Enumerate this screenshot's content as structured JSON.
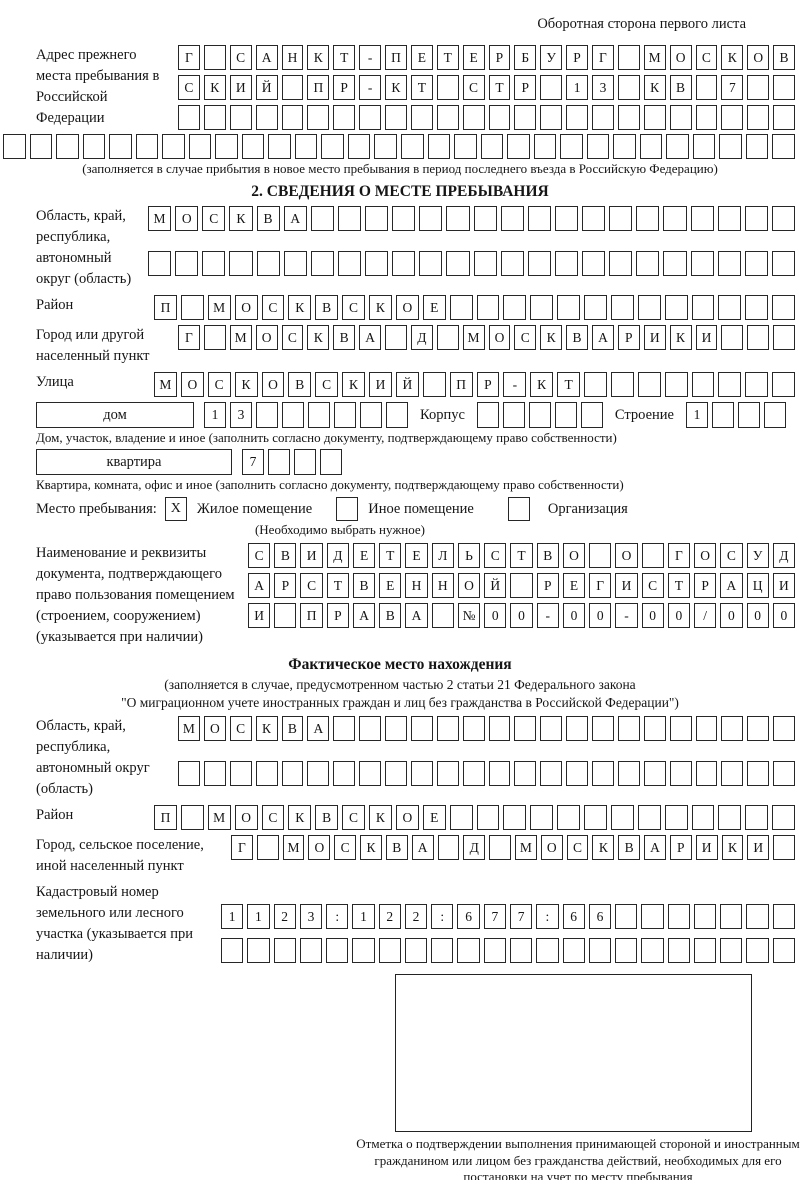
{
  "colors": {
    "ink": "#151515",
    "box_border": "#272727",
    "background": "#ffffff"
  },
  "header": {
    "note": "Оборотная сторона первого листа"
  },
  "prev_address": {
    "label": "Адрес прежнего места пребывания в Российской Федерации",
    "rows": [
      [
        "Г",
        "",
        "С",
        "А",
        "Н",
        "К",
        "Т",
        "-",
        "П",
        "Е",
        "Т",
        "Е",
        "Р",
        "Б",
        "У",
        "Р",
        "Г",
        "",
        "М",
        "О",
        "С",
        "К",
        "О",
        "В"
      ],
      [
        "С",
        "К",
        "И",
        "Й",
        "",
        "П",
        "Р",
        "-",
        "К",
        "Т",
        "",
        "С",
        "Т",
        "Р",
        "",
        "1",
        "3",
        "",
        "К",
        "В",
        "",
        "7",
        "",
        ""
      ],
      [
        "",
        "",
        "",
        "",
        "",
        "",
        "",
        "",
        "",
        "",
        "",
        "",
        "",
        "",
        "",
        "",
        "",
        "",
        "",
        "",
        "",
        "",
        "",
        ""
      ]
    ],
    "overflow_row": [
      "",
      "",
      "",
      "",
      "",
      "",
      "",
      "",
      "",
      "",
      "",
      "",
      "",
      "",
      "",
      "",
      "",
      "",
      "",
      "",
      "",
      "",
      "",
      "",
      "",
      "",
      "",
      "",
      "",
      ""
    ],
    "caption": "(заполняется в случае прибытия в новое место пребывания в период последнего въезда в Российскую Федерацию)"
  },
  "section2": {
    "title": "2. СВЕДЕНИЯ О МЕСТЕ ПРЕБЫВАНИЯ",
    "region": {
      "label": "Область, край, республика, автономный округ (область)",
      "rows": [
        [
          "М",
          "О",
          "С",
          "К",
          "В",
          "А",
          "",
          "",
          "",
          "",
          "",
          "",
          "",
          "",
          "",
          "",
          "",
          "",
          "",
          "",
          "",
          "",
          "",
          ""
        ],
        [
          "",
          "",
          "",
          "",
          "",
          "",
          "",
          "",
          "",
          "",
          "",
          "",
          "",
          "",
          "",
          "",
          "",
          "",
          "",
          "",
          "",
          "",
          "",
          ""
        ]
      ]
    },
    "district": {
      "label": "Район",
      "row": [
        "П",
        "",
        "М",
        "О",
        "С",
        "К",
        "В",
        "С",
        "К",
        "О",
        "Е",
        "",
        "",
        "",
        "",
        "",
        "",
        "",
        "",
        "",
        "",
        "",
        "",
        ""
      ]
    },
    "city": {
      "label": "Город или другой населенный пункт",
      "row": [
        "Г",
        "",
        "М",
        "О",
        "С",
        "К",
        "В",
        "А",
        "",
        "Д",
        "",
        "М",
        "О",
        "С",
        "К",
        "В",
        "А",
        "Р",
        "И",
        "К",
        "И",
        "",
        "",
        ""
      ]
    },
    "street": {
      "label": "Улица",
      "row": [
        "М",
        "О",
        "С",
        "К",
        "О",
        "В",
        "С",
        "К",
        "И",
        "Й",
        "",
        "П",
        "Р",
        "-",
        "К",
        "Т",
        "",
        "",
        "",
        "",
        "",
        "",
        "",
        ""
      ]
    },
    "house": {
      "type_label": "дом",
      "number_cells": [
        "1",
        "3",
        "",
        "",
        "",
        "",
        "",
        ""
      ],
      "korpus_label": "Корпус",
      "korpus_cells": [
        "",
        "",
        "",
        "",
        ""
      ],
      "stroenie_label": "Строение",
      "stroenie_cells": [
        "1",
        "",
        "",
        ""
      ]
    },
    "house_caption": "Дом, участок, владение и иное (заполнить согласно документу, подтверждающему право собственности)",
    "apartment": {
      "type_label": "квартира",
      "cells": [
        "7",
        "",
        "",
        ""
      ]
    },
    "apartment_caption": "Квартира, комната, офис и иное (заполнить согласно документу, подтверждающему право собственности)",
    "stay": {
      "label": "Место пребывания:",
      "options": [
        {
          "label": "Жилое помещение",
          "mark": "X"
        },
        {
          "label": "Иное помещение",
          "mark": ""
        },
        {
          "label": "Организация",
          "mark": ""
        }
      ],
      "note": "(Необходимо выбрать нужное)"
    },
    "document": {
      "label": "Наименование и реквизиты документа, подтверждающего право пользования помещением (строением, сооружением) (указывается при наличии)",
      "rows": [
        [
          "С",
          "В",
          "И",
          "Д",
          "Е",
          "Т",
          "Е",
          "Л",
          "Ь",
          "С",
          "Т",
          "В",
          "О",
          "",
          "О",
          "",
          "Г",
          "О",
          "С",
          "У",
          "Д"
        ],
        [
          "А",
          "Р",
          "С",
          "Т",
          "В",
          "Е",
          "Н",
          "Н",
          "О",
          "Й",
          "",
          "Р",
          "Е",
          "Г",
          "И",
          "С",
          "Т",
          "Р",
          "А",
          "Ц",
          "И"
        ],
        [
          "И",
          "",
          "П",
          "Р",
          "А",
          "В",
          "А",
          "",
          "№",
          "0",
          "0",
          "-",
          "0",
          "0",
          "-",
          "0",
          "0",
          "/",
          "0",
          "0",
          "0"
        ]
      ]
    }
  },
  "actual_location": {
    "title": "Фактическое место нахождения",
    "caption_line1": "(заполняется в случае, предусмотренном частью 2 статьи 21 Федерального закона",
    "caption_line2": "\"О миграционном учете иностранных граждан и лиц без гражданства в Российской Федерации\")",
    "region": {
      "label": "Область, край, республика, автономный округ (область)",
      "rows": [
        [
          "М",
          "О",
          "С",
          "К",
          "В",
          "А",
          "",
          "",
          "",
          "",
          "",
          "",
          "",
          "",
          "",
          "",
          "",
          "",
          "",
          "",
          "",
          "",
          "",
          ""
        ],
        [
          "",
          "",
          "",
          "",
          "",
          "",
          "",
          "",
          "",
          "",
          "",
          "",
          "",
          "",
          "",
          "",
          "",
          "",
          "",
          "",
          "",
          "",
          "",
          ""
        ]
      ]
    },
    "district": {
      "label": "Район",
      "row": [
        "П",
        "",
        "М",
        "О",
        "С",
        "К",
        "В",
        "С",
        "К",
        "О",
        "Е",
        "",
        "",
        "",
        "",
        "",
        "",
        "",
        "",
        "",
        "",
        "",
        "",
        ""
      ]
    },
    "settlement": {
      "label": "Город, сельское поселение, иной населенный пункт",
      "row": [
        "Г",
        "",
        "М",
        "О",
        "С",
        "К",
        "В",
        "А",
        "",
        "Д",
        "",
        "М",
        "О",
        "С",
        "К",
        "В",
        "А",
        "Р",
        "И",
        "К",
        "И",
        ""
      ]
    },
    "cadastral": {
      "label": "Кадастровый номер земельного или лесного участка (указывается при наличии)",
      "rows": [
        [
          "1",
          "1",
          "2",
          "3",
          ":",
          "1",
          "2",
          "2",
          ":",
          "6",
          "7",
          "7",
          ":",
          "6",
          "6",
          "",
          "",
          "",
          "",
          "",
          "",
          ""
        ],
        [
          "",
          "",
          "",
          "",
          "",
          "",
          "",
          "",
          "",
          "",
          "",
          "",
          "",
          "",
          "",
          "",
          "",
          "",
          "",
          "",
          "",
          ""
        ]
      ]
    },
    "stamp_caption": "Отметка о подтверждении выполнения принимающей стороной и иностранным гражданином или лицом без гражданства действий, необходимых для его постановки на учет по месту пребывания"
  }
}
